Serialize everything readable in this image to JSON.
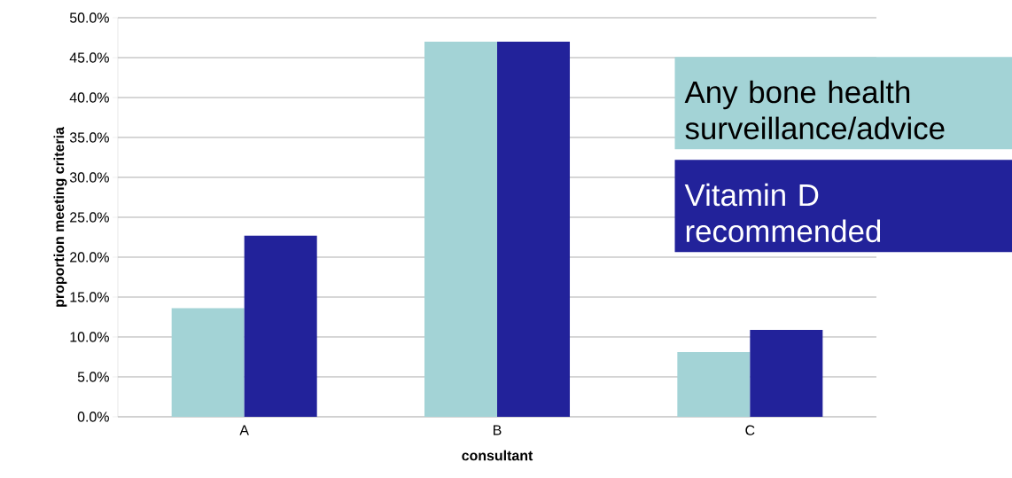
{
  "chart_data": {
    "type": "bar",
    "xlabel": "consultant",
    "ylabel": "proportion meeting criteria",
    "categories": [
      "A",
      "B",
      "C"
    ],
    "series": [
      {
        "name": "Any bone health surveillance/advice",
        "color": "#a3d3d6",
        "values": [
          13.6,
          47.0,
          8.1
        ]
      },
      {
        "name": "Vitamin D recommended",
        "color": "#22229a",
        "values": [
          22.7,
          47.0,
          10.9
        ]
      }
    ],
    "ylim": [
      0,
      50
    ],
    "yticks": [
      {
        "value": 0,
        "label": "0.0%"
      },
      {
        "value": 5,
        "label": "5.0%"
      },
      {
        "value": 10,
        "label": "10.0%"
      },
      {
        "value": 15,
        "label": "15.0%"
      },
      {
        "value": 20,
        "label": "20.0%"
      },
      {
        "value": 25,
        "label": "25.0%"
      },
      {
        "value": 30,
        "label": "30.0%"
      },
      {
        "value": 35,
        "label": "35.0%"
      },
      {
        "value": 40,
        "label": "40.0%"
      },
      {
        "value": 45,
        "label": "45.0%"
      },
      {
        "value": 50,
        "label": "50.0%"
      }
    ],
    "grid": "y",
    "legend": "top right"
  }
}
